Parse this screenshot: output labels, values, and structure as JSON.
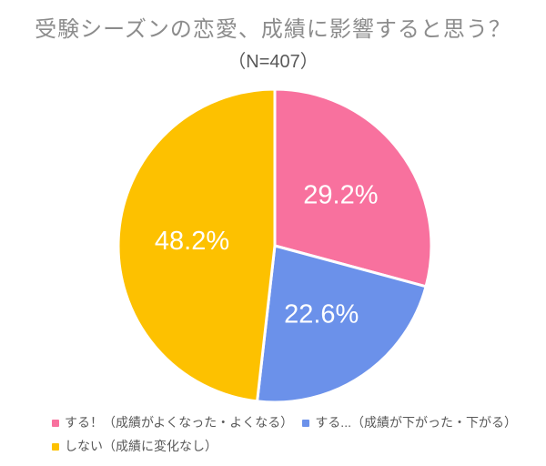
{
  "chart_data": {
    "type": "pie",
    "title": "受験シーズンの恋愛、成績に影響すると思う？",
    "subtitle": "（N=407）",
    "sample_size": 407,
    "start_angle_deg": 0,
    "direction": "clockwise",
    "legend_position": "bottom-left",
    "label_color": "#ffffff",
    "separator_color": "#ffffff",
    "slices": [
      {
        "label": "する！（成績がよくなった・よくなる）",
        "value": 29.2,
        "display": "29.2%",
        "color": "#f8719e"
      },
      {
        "label": "する...（成績が下がった・下がる）",
        "value": 22.6,
        "display": "22.6%",
        "color": "#6b91ea"
      },
      {
        "label": "しない（成績に変化なし）",
        "value": 48.2,
        "display": "48.2%",
        "color": "#fdc100"
      }
    ]
  },
  "colors": {
    "background": "#ffffff",
    "title_text": "#8c8c8c",
    "subtitle_text": "#595959",
    "legend_text": "#595959"
  }
}
